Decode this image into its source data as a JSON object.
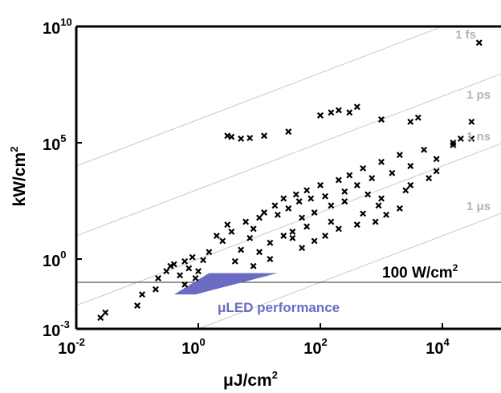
{
  "chart_data": {
    "type": "scatter",
    "title": "",
    "xlabel": "μJ/cm",
    "xlabel_sup": "2",
    "ylabel": "kW/cm",
    "ylabel_sup": "2",
    "xscale": "log",
    "yscale": "log",
    "xlim": [
      0.01,
      100000
    ],
    "ylim": [
      0.001,
      10000000000
    ],
    "grid": false,
    "x_ticks": [
      {
        "value": 0.01,
        "base": "10",
        "exp": "-2"
      },
      {
        "value": 1,
        "base": "10",
        "exp": "0"
      },
      {
        "value": 100,
        "base": "10",
        "exp": "2"
      },
      {
        "value": 10000,
        "base": "10",
        "exp": "4"
      }
    ],
    "y_ticks": [
      {
        "value": 0.001,
        "base": "10",
        "exp": "-3"
      },
      {
        "value": 1,
        "base": "10",
        "exp": "0"
      },
      {
        "value": 100000,
        "base": "10",
        "exp": "5"
      },
      {
        "value": 10000000000,
        "base": "10",
        "exp": "10"
      }
    ],
    "pulse_lines": [
      {
        "label": "1 fs",
        "duration_s": 1e-15
      },
      {
        "label": "1 ps",
        "duration_s": 1e-12
      },
      {
        "label": "1 ns",
        "duration_s": 1e-09
      },
      {
        "label": "1 μs",
        "duration_s": 1e-06
      }
    ],
    "reference_line": {
      "label": "100 W/cm",
      "label_sup": "2",
      "y": 0.1
    },
    "led_region": {
      "label": "μLED performance",
      "color": "#6b6bc4",
      "polygon": [
        [
          0.9,
          0.03
        ],
        [
          20,
          0.25
        ],
        [
          1.5,
          0.25
        ],
        [
          0.4,
          0.03
        ]
      ]
    },
    "series": [
      {
        "marker": "x",
        "color": "#000000",
        "points": [
          [
            0.025,
            0.003
          ],
          [
            0.03,
            0.005
          ],
          [
            0.1,
            0.01
          ],
          [
            0.12,
            0.03
          ],
          [
            0.2,
            0.05
          ],
          [
            0.22,
            0.15
          ],
          [
            0.3,
            0.3
          ],
          [
            0.35,
            0.5
          ],
          [
            0.4,
            0.6
          ],
          [
            0.5,
            0.2
          ],
          [
            0.6,
            0.8
          ],
          [
            0.7,
            0.4
          ],
          [
            0.8,
            1.2
          ],
          [
            1,
            0.3
          ],
          [
            1.2,
            0.9
          ],
          [
            1.5,
            2
          ],
          [
            2,
            10
          ],
          [
            2.5,
            6
          ],
          [
            3,
            30
          ],
          [
            3.5,
            15
          ],
          [
            4,
            0.8
          ],
          [
            5,
            2.5
          ],
          [
            6,
            40
          ],
          [
            7,
            8
          ],
          [
            8,
            20
          ],
          [
            10,
            60
          ],
          [
            12,
            100
          ],
          [
            15,
            5
          ],
          [
            18,
            200
          ],
          [
            20,
            80
          ],
          [
            25,
            400
          ],
          [
            30,
            150
          ],
          [
            35,
            15
          ],
          [
            40,
            600
          ],
          [
            45,
            300
          ],
          [
            50,
            60
          ],
          [
            60,
            900
          ],
          [
            70,
            400
          ],
          [
            80,
            100
          ],
          [
            100,
            1500
          ],
          [
            120,
            500
          ],
          [
            150,
            200
          ],
          [
            200,
            2500
          ],
          [
            250,
            800
          ],
          [
            300,
            4000
          ],
          [
            400,
            1500
          ],
          [
            500,
            8000
          ],
          [
            700,
            3000
          ],
          [
            1000,
            15000
          ],
          [
            1500,
            5000
          ],
          [
            2000,
            30000
          ],
          [
            3000,
            10000
          ],
          [
            5000,
            50000
          ],
          [
            8000,
            20000
          ],
          [
            15000,
            80000
          ],
          [
            30000,
            150000
          ],
          [
            3,
            200000
          ],
          [
            3.5,
            180000
          ],
          [
            5,
            150000
          ],
          [
            7,
            160000
          ],
          [
            12,
            200000
          ],
          [
            30,
            300000
          ],
          [
            100,
            1500000
          ],
          [
            150,
            2000000
          ],
          [
            200,
            2500000
          ],
          [
            300,
            2000000
          ],
          [
            400,
            3500000
          ],
          [
            1000,
            1000000
          ],
          [
            3000,
            800000
          ],
          [
            4000,
            1200000
          ],
          [
            30000,
            800000
          ],
          [
            20000,
            150000
          ],
          [
            15000,
            100000
          ],
          [
            10,
            2
          ],
          [
            15,
            1
          ],
          [
            50,
            3
          ],
          [
            80,
            6
          ],
          [
            120,
            10
          ],
          [
            200,
            20
          ],
          [
            400,
            30
          ],
          [
            800,
            40
          ],
          [
            1200,
            80
          ],
          [
            2000,
            150
          ],
          [
            600,
            600
          ],
          [
            250,
            300
          ],
          [
            40000,
            2000000000
          ],
          [
            8000,
            6000
          ],
          [
            6000,
            3000
          ],
          [
            3000,
            1500
          ],
          [
            1000,
            400
          ],
          [
            0.9,
            0.15
          ],
          [
            0.6,
            0.08
          ],
          [
            25,
            10
          ],
          [
            60,
            25
          ],
          [
            150,
            40
          ],
          [
            500,
            90
          ],
          [
            900,
            200
          ],
          [
            2500,
            900
          ],
          [
            35,
            8
          ],
          [
            8,
            0.5
          ]
        ]
      }
    ]
  }
}
